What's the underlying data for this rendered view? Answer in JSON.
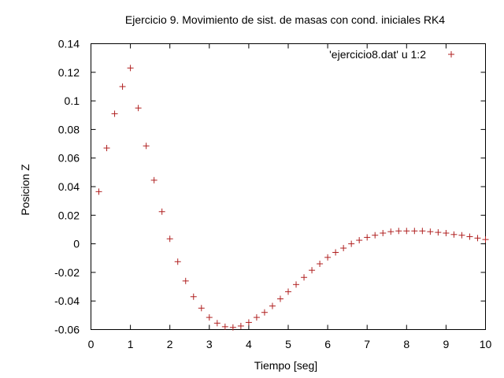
{
  "chart_data": {
    "type": "scatter",
    "title": "Ejercicio 9. Movimiento de sist. de masas con cond. iniciales RK4",
    "xlabel": "Tiempo [seg]",
    "ylabel": "Posicion Z",
    "xlim": [
      0,
      10
    ],
    "ylim": [
      -0.06,
      0.14
    ],
    "xticks": [
      0,
      1,
      2,
      3,
      4,
      5,
      6,
      7,
      8,
      9,
      10
    ],
    "xtick_labels": [
      "0",
      "1",
      "2",
      "3",
      "4",
      "5",
      "6",
      "7",
      "8",
      "9",
      "10"
    ],
    "yticks": [
      -0.06,
      -0.04,
      -0.02,
      0,
      0.02,
      0.04,
      0.06,
      0.08,
      0.1,
      0.12,
      0.14
    ],
    "ytick_labels": [
      "-0.06",
      "-0.04",
      "-0.02",
      "0",
      "0.02",
      "0.04",
      "0.06",
      "0.08",
      "0.1",
      "0.12",
      "0.14"
    ],
    "grid": false,
    "legend_position": "top-right",
    "series": [
      {
        "name": "'ejercicio8.dat' u 1:2",
        "color": "#b02020",
        "marker": "plus",
        "x": [
          0.2,
          0.4,
          0.6,
          0.8,
          1.0,
          1.2,
          1.4,
          1.6,
          1.8,
          2.0,
          2.2,
          2.4,
          2.6,
          2.8,
          3.0,
          3.2,
          3.4,
          3.6,
          3.8,
          4.0,
          4.2,
          4.4,
          4.6,
          4.8,
          5.0,
          5.2,
          5.4,
          5.6,
          5.8,
          6.0,
          6.2,
          6.4,
          6.6,
          6.8,
          7.0,
          7.2,
          7.4,
          7.6,
          7.8,
          8.0,
          8.2,
          8.4,
          8.6,
          8.8,
          9.0,
          9.2,
          9.4,
          9.6,
          9.8,
          10.0
        ],
        "y": [
          0.0365,
          0.067,
          0.091,
          0.11,
          0.123,
          0.095,
          0.0685,
          0.0445,
          0.0225,
          0.0035,
          -0.0125,
          -0.026,
          -0.037,
          -0.045,
          -0.0515,
          -0.0555,
          -0.058,
          -0.0585,
          -0.0575,
          -0.055,
          -0.0515,
          -0.048,
          -0.0435,
          -0.0385,
          -0.0335,
          -0.0285,
          -0.0235,
          -0.0185,
          -0.014,
          -0.0095,
          -0.006,
          -0.003,
          0.0,
          0.0025,
          0.0045,
          0.006,
          0.0075,
          0.0085,
          0.009,
          0.009,
          0.009,
          0.009,
          0.0085,
          0.008,
          0.0075,
          0.0065,
          0.006,
          0.005,
          0.004,
          0.003
        ]
      }
    ]
  }
}
